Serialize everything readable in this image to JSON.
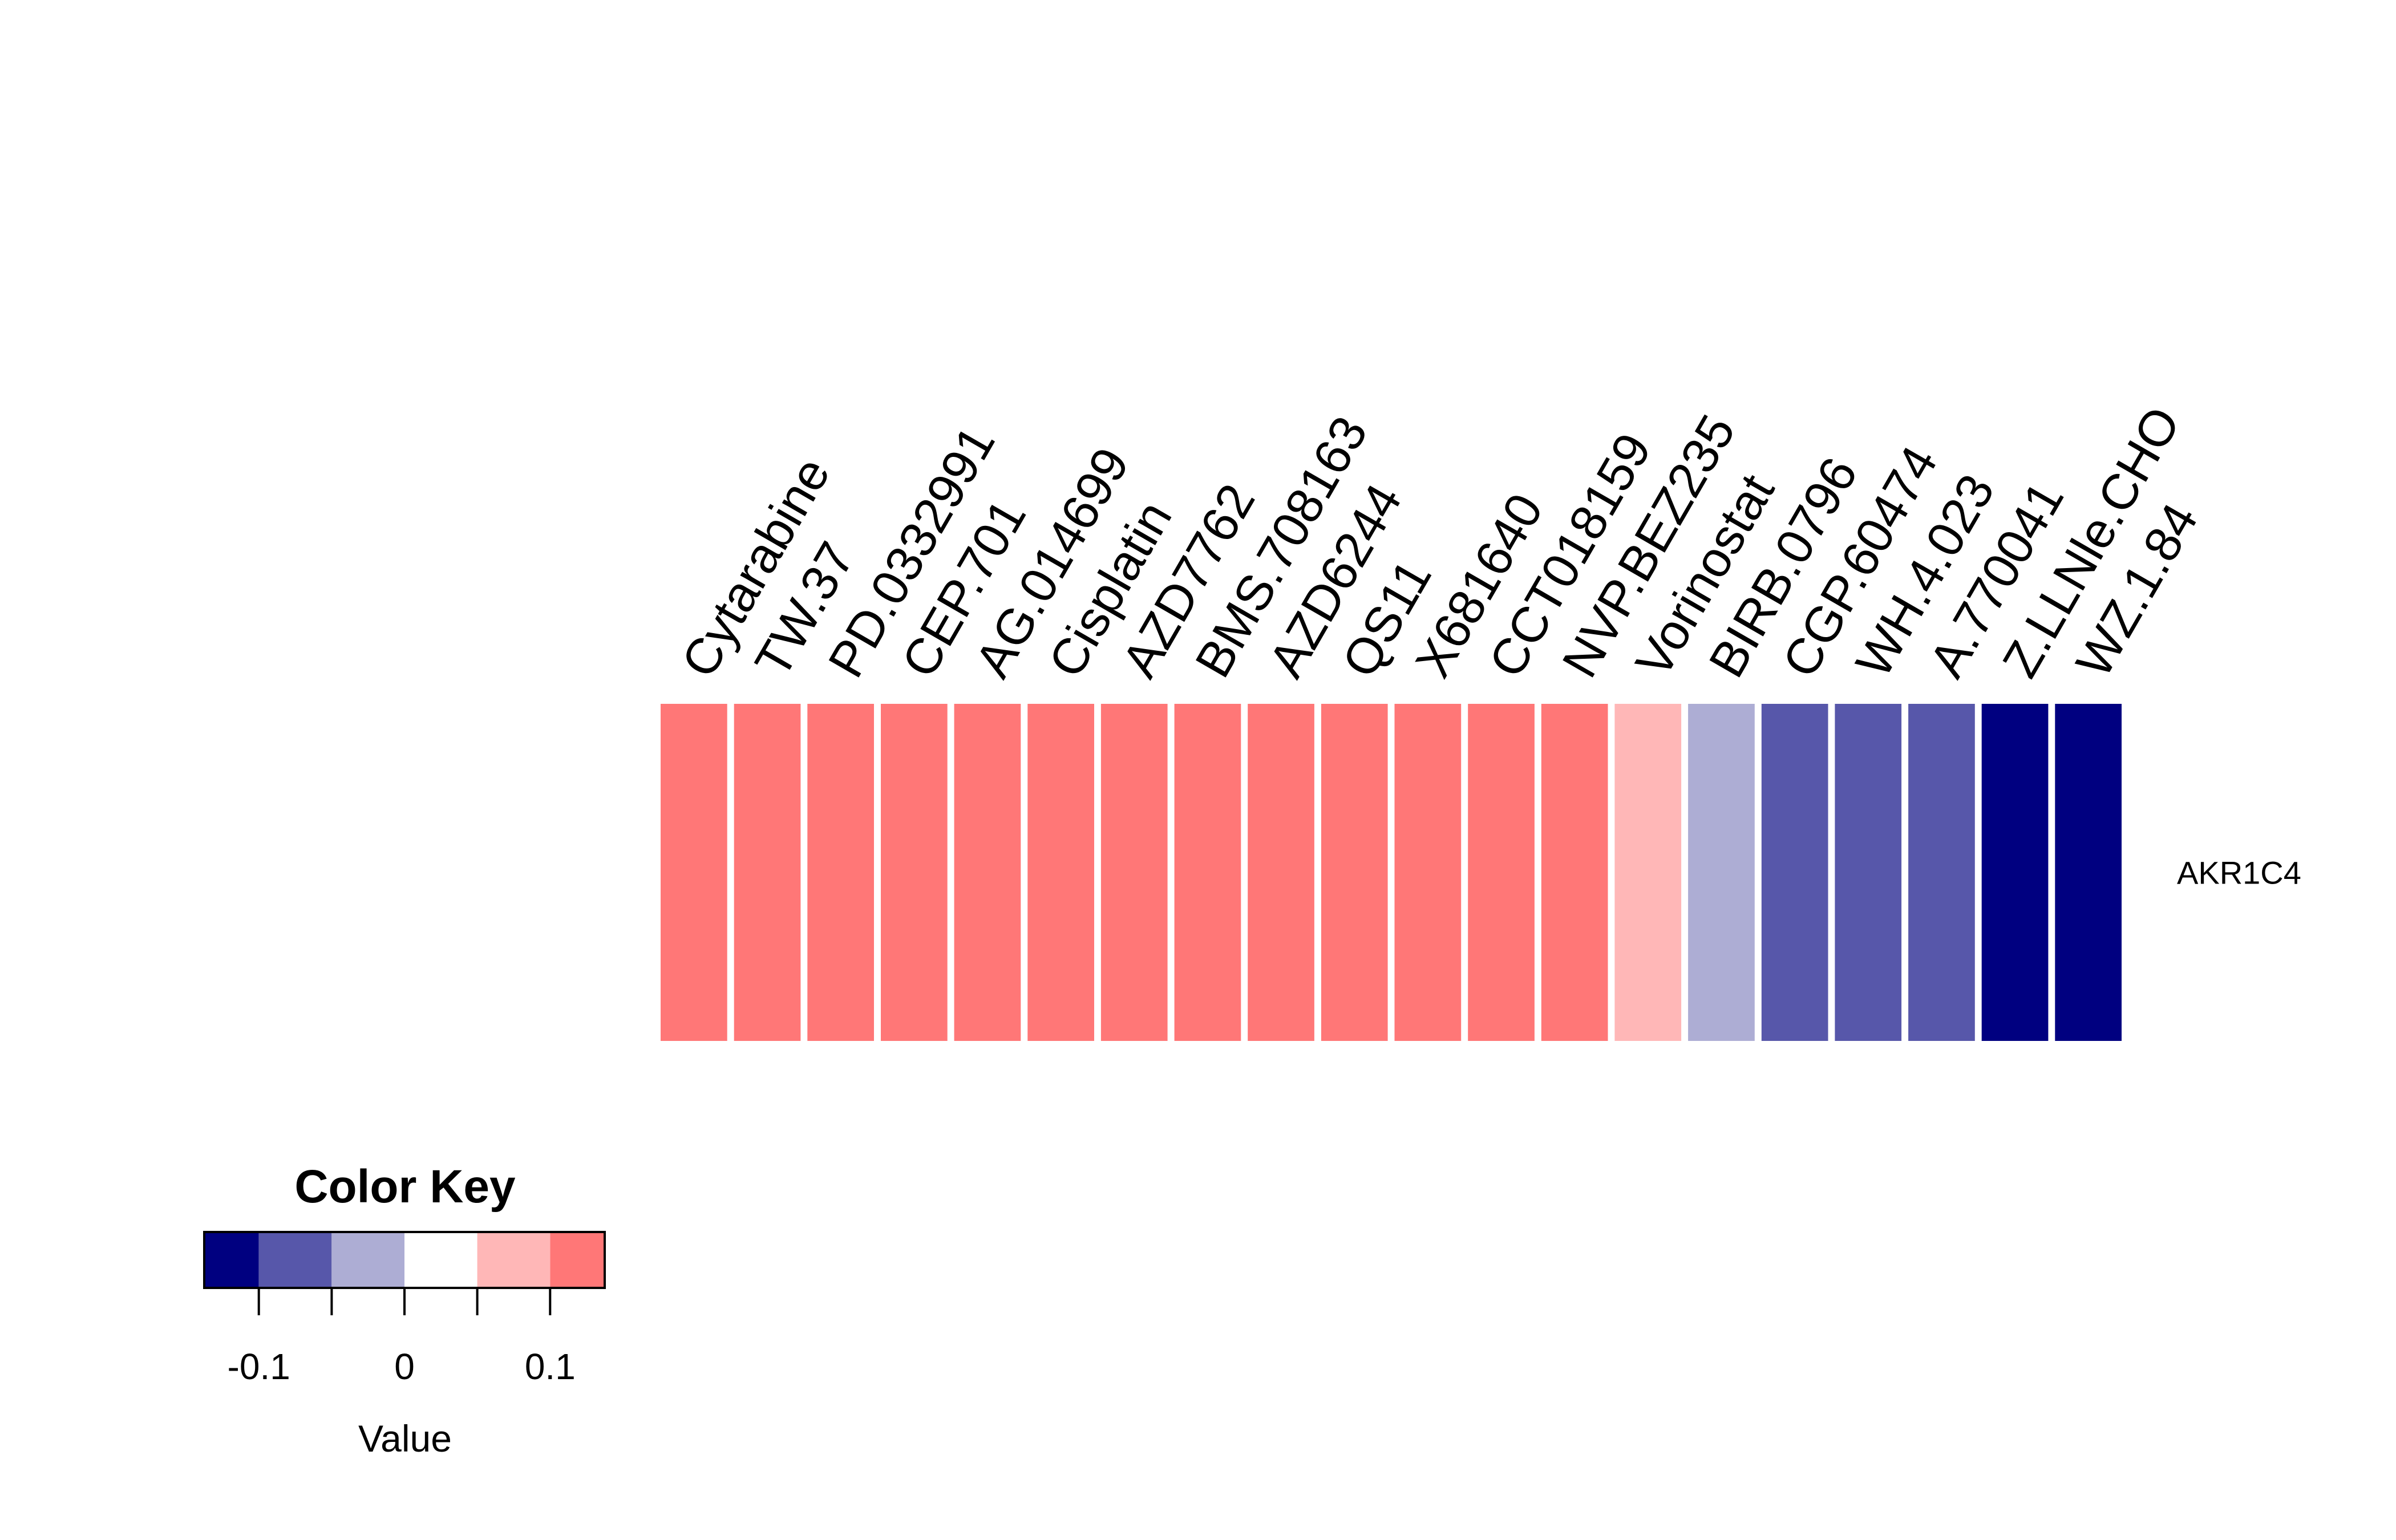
{
  "chart_data": {
    "type": "heatmap",
    "rows": [
      "AKR1C4"
    ],
    "columns": [
      "Cytarabine",
      "TW.37",
      "PD.0332991",
      "CEP.701",
      "AG.014699",
      "Cisplatin",
      "AZD7762",
      "BMS.708163",
      "AZD6244",
      "QS11",
      "X681640",
      "CCT018159",
      "NVP.BEZ235",
      "Vorinostat",
      "BIRB.0796",
      "CGP.60474",
      "WH.4.023",
      "A.770041",
      "Z.LLNle.CHO",
      "WZ.1.84"
    ],
    "values": [
      [
        0.1,
        0.1,
        0.1,
        0.1,
        0.1,
        0.1,
        0.1,
        0.1,
        0.1,
        0.1,
        0.1,
        0.1,
        0.1,
        0.05,
        -0.05,
        -0.1,
        -0.1,
        -0.1,
        -0.15,
        -0.15
      ]
    ],
    "color_key": {
      "title": "Color Key",
      "xlabel": "Value",
      "breaks": [
        -0.15,
        -0.1,
        -0.05,
        0,
        0.05,
        0.1,
        0.15
      ],
      "range": [
        -0.1375,
        0.1375
      ],
      "colors": [
        "#000080",
        "#5757AA",
        "#ADADD4",
        "#FFFFFF",
        "#FFB7B7",
        "#FF7777",
        "#FF3333"
      ],
      "ticks": [
        -0.1,
        0,
        0.1
      ],
      "tick_labels": [
        "-0.1",
        "0",
        "0.1"
      ]
    }
  }
}
